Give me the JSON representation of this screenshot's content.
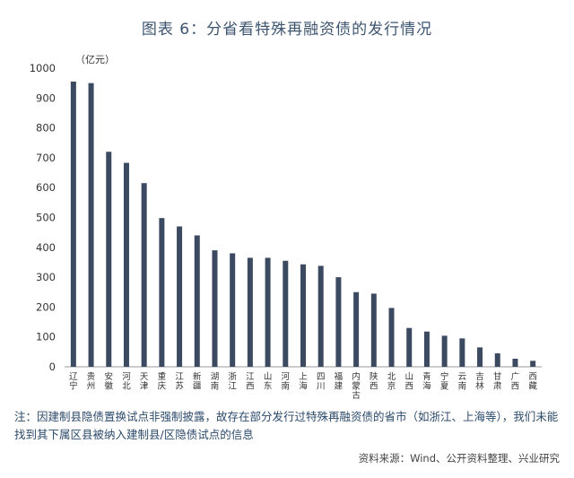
{
  "chart_data": {
    "type": "bar",
    "title": "图表 6：分省看特殊再融资债的发行情况",
    "ylabel": "（亿元）",
    "ylim": [
      0,
      1000
    ],
    "yticks": [
      0,
      100,
      200,
      300,
      400,
      500,
      600,
      700,
      800,
      900,
      1000
    ],
    "categories": [
      "辽宁",
      "贵州",
      "安徽",
      "河北",
      "天津",
      "重庆",
      "江苏",
      "新疆",
      "湖南",
      "浙江",
      "江西",
      "山东",
      "河南",
      "上海",
      "四川",
      "福建",
      "内蒙古",
      "陕西",
      "北京",
      "山西",
      "青海",
      "宁夏",
      "云南",
      "吉林",
      "甘肃",
      "广西",
      "西藏"
    ],
    "values": [
      955,
      950,
      720,
      683,
      615,
      498,
      470,
      440,
      390,
      380,
      365,
      365,
      355,
      343,
      338,
      300,
      250,
      245,
      197,
      130,
      118,
      104,
      95,
      65,
      45,
      27,
      20
    ],
    "bar_color": "#3b4a61"
  },
  "note": "注：因建制县隐债置换试点非强制披露，故存在部分发行过特殊再融资债的省市（如浙江、上海等），我们未能找到其下属区县被纳入建制县/区隐债试点的信息",
  "source": "资料来源：Wind、公开资料整理、兴业研究"
}
